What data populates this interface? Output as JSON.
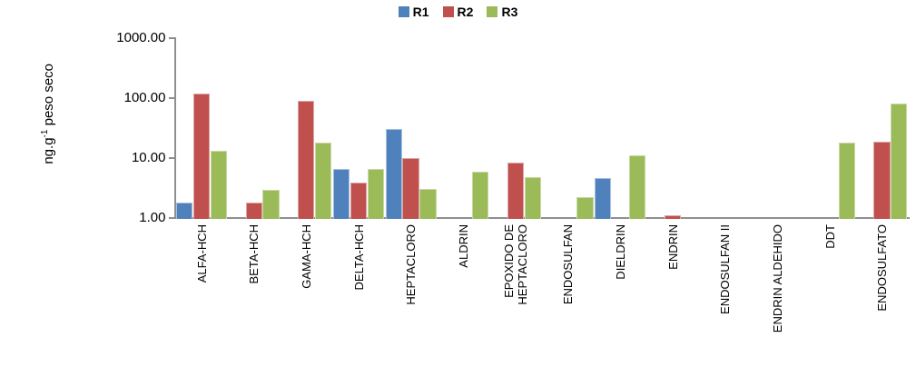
{
  "y_axis_title": {
    "pre": "ng.g",
    "sup": "-1",
    "post": " peso seco"
  },
  "chart_data": {
    "type": "bar",
    "scale": "log",
    "title": "",
    "xlabel": "",
    "ylabel": "ng.g-1 peso seco",
    "ylim": [
      1,
      1000
    ],
    "yticks": [
      1000,
      100,
      10,
      1
    ],
    "ytick_labels": [
      "1000.00",
      "100.00",
      "10.00",
      "1.00"
    ],
    "grid": false,
    "legend_position": "top-center",
    "categories": [
      "ALFA-HCH",
      "BETA-HCH",
      "GAMA-HCH",
      "DELTA-HCH",
      "HEPTACLORO",
      "ALDRIN",
      "EPOXIDO DE HEPTACLORO",
      "ENDOSULFAN",
      "DIELDRIN",
      "ENDRIN",
      "ENDOSULFAN II",
      "ENDRIN ALDEHIDO",
      "DDT",
      "ENDOSULFATO"
    ],
    "category_wrap": {
      "6": [
        "EPOXIDO DE",
        "HEPTACLORO"
      ]
    },
    "series": [
      {
        "name": "R1",
        "color": "#4F81BD",
        "border_color": "#A7C0DE",
        "values": [
          1.8,
          null,
          null,
          6.5,
          31,
          null,
          null,
          null,
          4.6,
          null,
          null,
          null,
          null,
          null
        ]
      },
      {
        "name": "R2",
        "color": "#C0504D",
        "border_color": "#DCA5A3",
        "values": [
          120,
          1.8,
          90,
          3.9,
          10,
          null,
          8.3,
          null,
          null,
          1.1,
          null,
          null,
          null,
          18.5
        ]
      },
      {
        "name": "R3",
        "color": "#9BBB59",
        "border_color": "#C8D8A4",
        "values": [
          13,
          3.0,
          18,
          6.5,
          3.1,
          5.9,
          4.8,
          2.2,
          11,
          null,
          null,
          null,
          18,
          80
        ]
      }
    ]
  }
}
